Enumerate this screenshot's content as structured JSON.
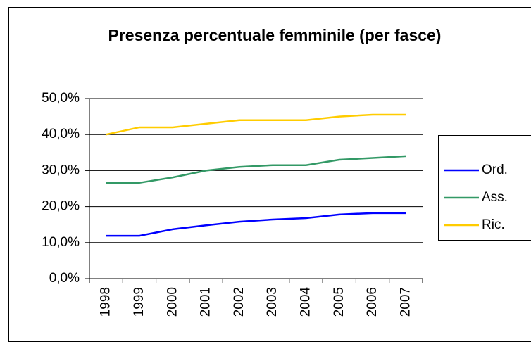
{
  "chart_data": {
    "type": "line",
    "title": "Presenza percentuale femminile (per fasce)",
    "categories": [
      "1998",
      "1999",
      "2000",
      "2001",
      "2002",
      "2003",
      "2004",
      "2005",
      "2006",
      "2007"
    ],
    "series": [
      {
        "name": "Ord.",
        "color": "#0000ff",
        "values": [
          11.9,
          11.9,
          13.7,
          14.8,
          15.8,
          16.4,
          16.8,
          17.8,
          18.2,
          18.2
        ]
      },
      {
        "name": "Ass.",
        "color": "#339966",
        "values": [
          26.6,
          26.6,
          28.1,
          30,
          31,
          31.5,
          31.5,
          33,
          33.5,
          34
        ]
      },
      {
        "name": "Ric.",
        "color": "#ffcc00",
        "values": [
          40,
          42,
          42,
          43,
          44,
          44,
          44,
          45,
          45.5,
          45.5
        ]
      }
    ],
    "ylim": [
      0,
      50
    ],
    "yticks": [
      {
        "value": 0,
        "label": "0,0%"
      },
      {
        "value": 10,
        "label": "10,0%"
      },
      {
        "value": 20,
        "label": "20,0%"
      },
      {
        "value": 30,
        "label": "30,0%"
      },
      {
        "value": 40,
        "label": "40,0%"
      },
      {
        "value": 50,
        "label": "50,0%"
      }
    ],
    "grid": true,
    "legend": "right"
  }
}
